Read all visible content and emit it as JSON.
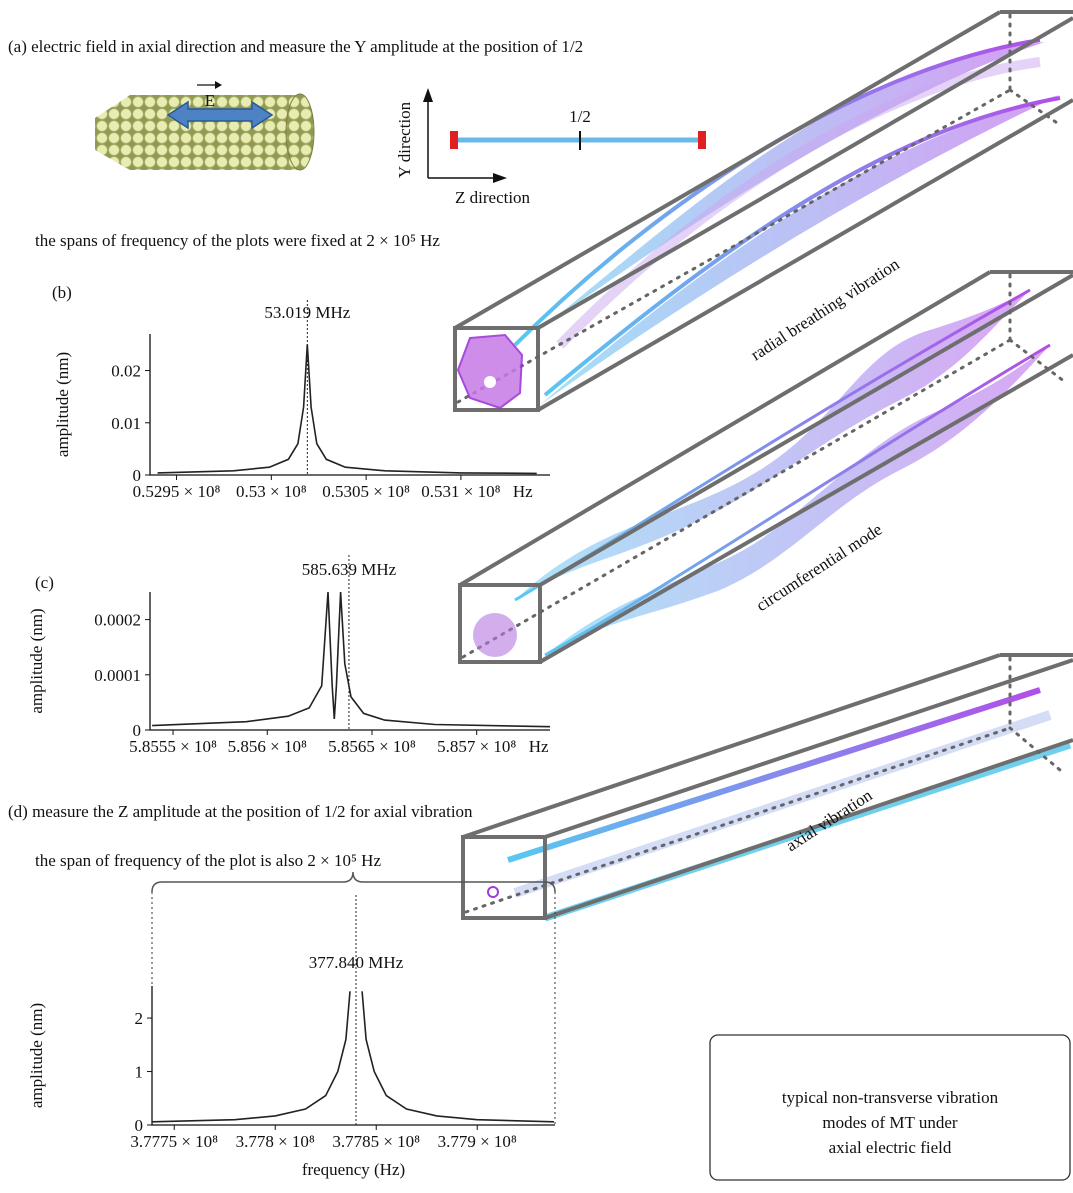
{
  "panel_a": {
    "caption": "(a) electric field in axial direction and measure the Y amplitude at the position of 1/2",
    "field_label": "E",
    "position_label": "1/2",
    "y_direction": "Y direction",
    "z_direction": "Z direction",
    "span_note": "the spans of frequency of the plots were fixed at 2 × 10⁵ Hz"
  },
  "panel_d": {
    "caption": "(d) measure the Z amplitude at the position of 1/2 for axial vibration",
    "span_note": "the span of frequency of the plot is also 2 × 10⁵ Hz"
  },
  "modes": [
    "radial breathing vibration",
    "circumferential mode",
    "axial vibration"
  ],
  "summary_box": [
    "typical non-transverse vibration",
    "modes of MT under",
    "axial electric field"
  ],
  "chart_data": [
    {
      "type": "line",
      "panel_label": "(b)",
      "ylabel": "amplitude (nm)",
      "x_unit": "Hz",
      "color": "#222",
      "annotation": {
        "text": "53.019 MHz",
        "x": 53019000
      },
      "x": [
        52940000,
        52980000,
        52999000,
        53009000,
        53014000,
        53017000,
        53019000,
        53021000,
        53024000,
        53029000,
        53039000,
        53060000,
        53100000,
        53140000
      ],
      "values": [
        0.0004,
        0.0008,
        0.0015,
        0.003,
        0.006,
        0.013,
        0.025,
        0.013,
        0.006,
        0.003,
        0.0015,
        0.0008,
        0.0004,
        0.0003
      ],
      "xlim": [
        52936000,
        53147000
      ],
      "xticks": [
        {
          "value": 52950000,
          "label": "0.5295 × 10⁸"
        },
        {
          "value": 53000000,
          "label": "0.53 × 10⁸"
        },
        {
          "value": 53050000,
          "label": "0.5305 × 10⁸"
        },
        {
          "value": 53100000,
          "label": "0.531 × 10⁸"
        }
      ],
      "ylim": [
        0,
        0.027
      ],
      "yticks": [
        0,
        0.01,
        0.02
      ]
    },
    {
      "type": "line",
      "panel_label": "(c)",
      "ylabel": "amplitude (nm)",
      "x_unit": "Hz",
      "color": "#222",
      "annotation": {
        "text": "585.639 MHz",
        "x": 585639000
      },
      "x": [
        585545000,
        585590000,
        585610000,
        585620000,
        585626000,
        585629000,
        585631000,
        585632000,
        585633000,
        585635000,
        585637000,
        585640000,
        585646000,
        585656000,
        585680000,
        585735000
      ],
      "values": [
        8e-06,
        1.5e-05,
        2.5e-05,
        4e-05,
        8e-05,
        0.00025,
        8e-05,
        2e-05,
        8e-05,
        0.00025,
        0.00012,
        6e-05,
        3e-05,
        1.8e-05,
        1e-05,
        6e-06
      ],
      "xlim": [
        585544000,
        585735000
      ],
      "xticks": [
        {
          "value": 585555000,
          "label": "5.8555 × 10⁸"
        },
        {
          "value": 585600000,
          "label": "5.856 × 10⁸"
        },
        {
          "value": 585650000,
          "label": "5.8565 × 10⁸"
        },
        {
          "value": 585700000,
          "label": "5.857 × 10⁸"
        }
      ],
      "ylim": [
        0,
        0.00025
      ],
      "yticks": [
        0,
        0.0001,
        0.0002
      ]
    },
    {
      "type": "line",
      "ylabel": "amplitude (nm)",
      "xlabel": "frequency (Hz)",
      "color": "#222",
      "annotation": {
        "text": "377.840 MHz",
        "x": 377840000
      },
      "x": [
        377739000,
        377780000,
        377800000,
        377815000,
        377825000,
        377831000,
        377835000,
        377837000,
        377840000,
        377843000,
        377845000,
        377849000,
        377855000,
        377865000,
        377880000,
        377900000,
        377938000
      ],
      "values": [
        0.06,
        0.1,
        0.17,
        0.3,
        0.55,
        1.0,
        1.6,
        2.5,
        null,
        2.5,
        1.6,
        1.0,
        0.55,
        0.3,
        0.17,
        0.1,
        0.06
      ],
      "xlim": [
        377739000,
        377938500
      ],
      "xticks": [
        {
          "value": 377750000,
          "label": "3.7775 × 10⁸"
        },
        {
          "value": 377800000,
          "label": "3.778 × 10⁸"
        },
        {
          "value": 377850000,
          "label": "3.7785 × 10⁸"
        },
        {
          "value": 377900000,
          "label": "3.779 × 10⁸"
        }
      ],
      "ylim": [
        0,
        2.6
      ],
      "yticks": [
        0,
        1,
        2
      ]
    }
  ]
}
